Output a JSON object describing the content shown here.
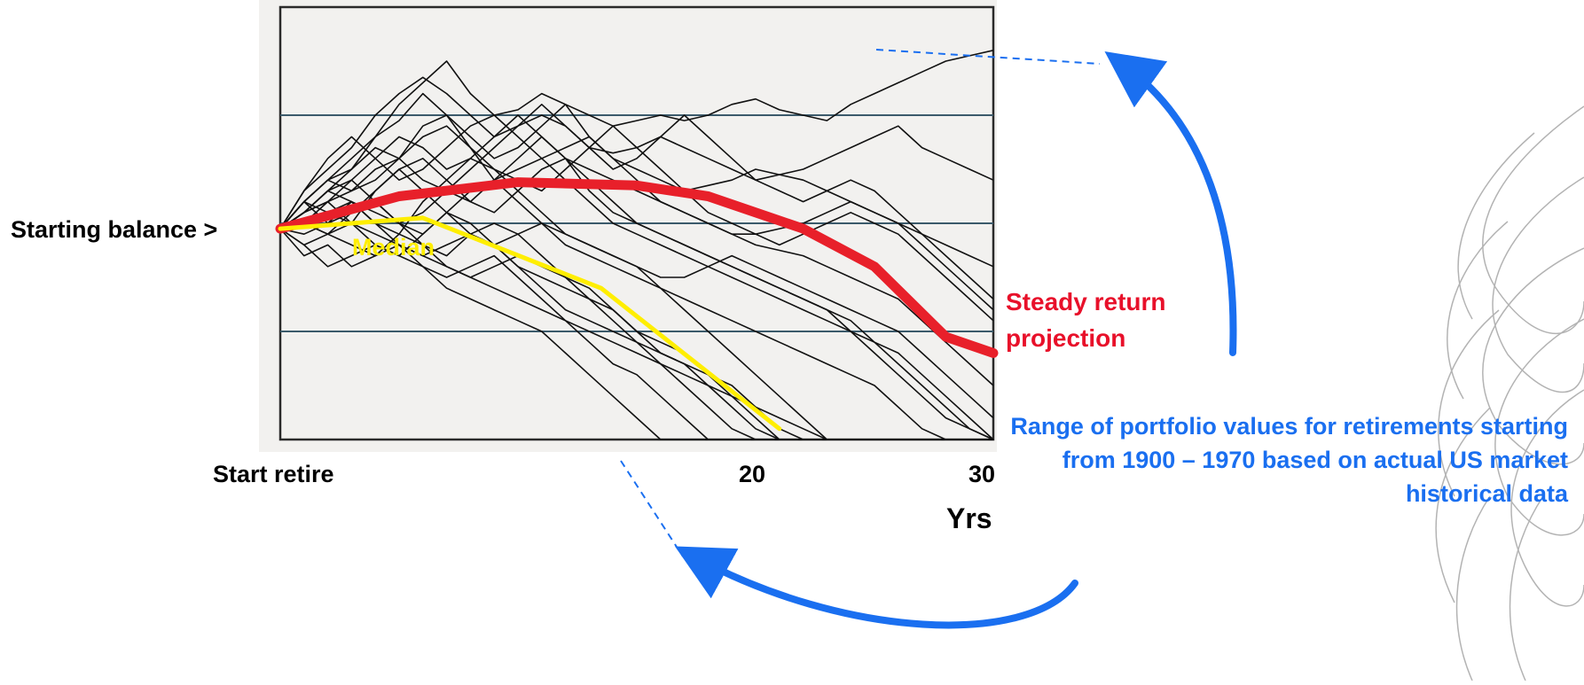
{
  "labels": {
    "starting_balance": "Starting balance >",
    "median": "Median",
    "steady_return": "Steady return projection",
    "range_note": "Range of portfolio values for retirements starting from 1900 – 1970 based on actual US market historical data"
  },
  "colors": {
    "median": "#ffee00",
    "steady_return": "#e8202a",
    "annotation": "#1a6ff0",
    "paths": "#111111"
  },
  "chart_data": {
    "type": "line",
    "title": "",
    "xlabel": "Yrs",
    "ylabel": "",
    "x_ticks": [
      {
        "x": 0,
        "label": "Start retire"
      },
      {
        "x": 20,
        "label": "20"
      },
      {
        "x": 30,
        "label": "30"
      }
    ],
    "xlim": [
      0,
      30
    ],
    "ylim": [
      0,
      4
    ],
    "y_gridlines": [
      1,
      2,
      3
    ],
    "starting_balance": 1.95,
    "series": [
      {
        "name": "Median",
        "x": [
          0,
          6,
          13.5,
          21
        ],
        "y": [
          1.95,
          2.05,
          1.4,
          0.1
        ]
      },
      {
        "name": "Steady return projection",
        "x": [
          0,
          5,
          10,
          15,
          18,
          22,
          25,
          28,
          30
        ],
        "y": [
          1.95,
          2.25,
          2.38,
          2.35,
          2.25,
          1.95,
          1.6,
          0.95,
          0.8
        ]
      }
    ],
    "historical_paths": [
      [
        1.95,
        2.2,
        2.4,
        2.6,
        2.8,
        3.1,
        3.3,
        3.5,
        3.2,
        3.0,
        3.05,
        3.2,
        3.1,
        3.0,
        2.9,
        2.95,
        3.0,
        2.95,
        3.0,
        3.1,
        3.15,
        3.05,
        3.0,
        2.95,
        3.1,
        3.2,
        3.3,
        3.4,
        3.5,
        3.55,
        3.6
      ],
      [
        1.95,
        2.3,
        2.5,
        2.7,
        3.0,
        3.2,
        3.35,
        3.2,
        3.0,
        2.8,
        2.9,
        3.0,
        2.9,
        2.7,
        2.65,
        2.7,
        2.8,
        2.7,
        2.6,
        2.5,
        2.4,
        2.45,
        2.5,
        2.6,
        2.7,
        2.8,
        2.9,
        2.7,
        2.6,
        2.5,
        2.4
      ],
      [
        1.95,
        2.1,
        2.3,
        2.5,
        2.8,
        2.95,
        3.2,
        3.0,
        2.8,
        2.6,
        2.7,
        2.9,
        3.1,
        2.8,
        2.6,
        2.5,
        2.4,
        2.3,
        2.35,
        2.4,
        2.5,
        2.45,
        2.4,
        2.3,
        2.2,
        2.1,
        2.0,
        1.9,
        1.8,
        1.7,
        1.6
      ],
      [
        1.95,
        2.2,
        2.4,
        2.3,
        2.5,
        2.6,
        2.9,
        3.0,
        2.7,
        2.4,
        2.5,
        2.6,
        2.7,
        2.8,
        2.6,
        2.4,
        2.2,
        2.1,
        2.0,
        1.9,
        1.9,
        1.95,
        2.0,
        2.1,
        2.2,
        2.1,
        2.0,
        1.8,
        1.6,
        1.4,
        1.2
      ],
      [
        1.95,
        2.0,
        2.2,
        2.4,
        2.6,
        2.8,
        2.7,
        2.5,
        2.6,
        2.8,
        3.0,
        2.8,
        2.6,
        2.5,
        2.4,
        2.3,
        2.2,
        2.1,
        2.0,
        1.9,
        1.8,
        1.75,
        1.7,
        1.6,
        1.5,
        1.4,
        1.3,
        1.1,
        0.9,
        0.7,
        0.5
      ],
      [
        1.95,
        2.1,
        2.2,
        2.0,
        2.3,
        2.5,
        2.6,
        2.4,
        2.2,
        2.1,
        2.3,
        2.5,
        2.6,
        2.4,
        2.2,
        2.0,
        1.9,
        1.8,
        1.7,
        1.6,
        1.5,
        1.4,
        1.3,
        1.2,
        1.1,
        0.9,
        0.7,
        0.5,
        0.3,
        0.1,
        0.0
      ],
      [
        1.95,
        2.2,
        2.0,
        2.1,
        2.2,
        2.0,
        1.9,
        2.1,
        2.3,
        2.4,
        2.2,
        2.0,
        1.8,
        1.7,
        1.6,
        1.5,
        1.4,
        1.3,
        1.2,
        1.1,
        1.0,
        0.9,
        0.8,
        0.7,
        0.6,
        0.5,
        0.3,
        0.1,
        0.0,
        0.0,
        0.0
      ],
      [
        1.95,
        1.8,
        1.9,
        2.0,
        1.8,
        1.7,
        1.9,
        2.1,
        2.0,
        1.8,
        1.6,
        1.5,
        1.4,
        1.3,
        1.1,
        0.9,
        0.7,
        0.5,
        0.3,
        0.1,
        0.0,
        0.0,
        0.0,
        0.0,
        0.0,
        0.0,
        0.0,
        0.0,
        0.0,
        0.0,
        0.0
      ],
      [
        1.95,
        2.1,
        2.3,
        2.2,
        2.0,
        1.9,
        1.8,
        1.7,
        1.9,
        2.0,
        1.9,
        1.7,
        1.5,
        1.3,
        1.2,
        1.0,
        0.9,
        0.8,
        0.6,
        0.4,
        0.2,
        0.0,
        0.0,
        0.0,
        0.0,
        0.0,
        0.0,
        0.0,
        0.0,
        0.0,
        0.0
      ],
      [
        1.95,
        1.7,
        1.8,
        1.6,
        1.7,
        1.8,
        1.6,
        1.4,
        1.3,
        1.2,
        1.1,
        1.0,
        0.8,
        0.6,
        0.4,
        0.2,
        0.0,
        0.0,
        0.0,
        0.0,
        0.0,
        0.0,
        0.0,
        0.0,
        0.0,
        0.0,
        0.0,
        0.0,
        0.0,
        0.0,
        0.0
      ],
      [
        1.95,
        2.0,
        1.9,
        1.8,
        1.7,
        1.9,
        2.2,
        2.4,
        2.6,
        2.5,
        2.3,
        2.1,
        1.9,
        1.8,
        1.7,
        1.6,
        1.4,
        1.2,
        1.0,
        0.8,
        0.6,
        0.4,
        0.2,
        0.0,
        0.0,
        0.0,
        0.0,
        0.0,
        0.0,
        0.0,
        0.0
      ],
      [
        1.95,
        2.2,
        2.4,
        2.5,
        2.7,
        2.6,
        2.4,
        2.3,
        2.2,
        2.4,
        2.6,
        2.8,
        2.6,
        2.3,
        2.1,
        2.0,
        1.9,
        1.8,
        1.7,
        1.6,
        1.5,
        1.4,
        1.3,
        1.2,
        1.0,
        0.8,
        0.6,
        0.4,
        0.2,
        0.1,
        0.0
      ],
      [
        1.95,
        1.9,
        2.0,
        2.2,
        2.0,
        1.8,
        1.7,
        1.6,
        1.5,
        1.6,
        1.7,
        1.6,
        1.5,
        1.4,
        1.2,
        1.0,
        0.8,
        0.7,
        0.5,
        0.3,
        0.1,
        0.0,
        0.0,
        0.0,
        0.0,
        0.0,
        0.0,
        0.0,
        0.0,
        0.0,
        0.0
      ],
      [
        1.95,
        2.1,
        2.2,
        2.3,
        2.4,
        2.6,
        2.8,
        2.9,
        2.7,
        2.5,
        2.4,
        2.3,
        2.5,
        2.7,
        2.9,
        2.7,
        2.5,
        2.3,
        2.1,
        2.0,
        1.9,
        1.8,
        1.9,
        2.0,
        2.1,
        2.0,
        1.9,
        1.7,
        1.5,
        1.3,
        1.1
      ],
      [
        1.95,
        2.0,
        2.1,
        2.2,
        2.1,
        2.0,
        1.8,
        1.6,
        1.5,
        1.4,
        1.3,
        1.2,
        1.1,
        1.0,
        0.9,
        0.8,
        0.7,
        0.6,
        0.5,
        0.4,
        0.3,
        0.2,
        0.1,
        0.0,
        0.0,
        0.0,
        0.0,
        0.0,
        0.0,
        0.0,
        0.0
      ],
      [
        1.95,
        1.8,
        1.6,
        1.7,
        1.8,
        1.7,
        1.6,
        1.5,
        1.6,
        1.7,
        1.5,
        1.3,
        1.1,
        0.9,
        0.7,
        0.6,
        0.4,
        0.2,
        0.0,
        0.0,
        0.0,
        0.0,
        0.0,
        0.0,
        0.0,
        0.0,
        0.0,
        0.0,
        0.0,
        0.0,
        0.0
      ],
      [
        1.95,
        2.1,
        2.3,
        2.4,
        2.2,
        2.0,
        2.1,
        2.3,
        2.5,
        2.7,
        2.9,
        3.1,
        2.9,
        2.7,
        2.5,
        2.6,
        2.8,
        3.0,
        2.8,
        2.6,
        2.4,
        2.3,
        2.2,
        2.3,
        2.4,
        2.3,
        2.1,
        1.9,
        1.7,
        1.5,
        1.3
      ],
      [
        1.95,
        2.0,
        1.9,
        2.1,
        2.3,
        2.5,
        2.3,
        2.1,
        1.9,
        1.8,
        1.9,
        2.0,
        1.9,
        1.8,
        1.7,
        1.6,
        1.5,
        1.5,
        1.6,
        1.7,
        1.6,
        1.5,
        1.4,
        1.3,
        1.2,
        1.1,
        1.0,
        0.8,
        0.6,
        0.4,
        0.2
      ],
      [
        1.95,
        2.2,
        2.1,
        2.0,
        1.9,
        1.8,
        1.7,
        1.8,
        1.9,
        1.8,
        1.6,
        1.4,
        1.2,
        1.1,
        1.0,
        0.9,
        0.8,
        0.7,
        0.6,
        0.5,
        0.3,
        0.1,
        0.0,
        0.0,
        0.0,
        0.0,
        0.0,
        0.0,
        0.0,
        0.0,
        0.0
      ],
      [
        1.95,
        2.3,
        2.6,
        2.8,
        2.6,
        2.4,
        2.5,
        2.7,
        2.9,
        3.0,
        2.8,
        2.6,
        2.4,
        2.2,
        2.0,
        1.9,
        1.8,
        1.7,
        1.6,
        1.5,
        1.4,
        1.3,
        1.2,
        1.1,
        1.0,
        0.9,
        0.8,
        0.6,
        0.4,
        0.2,
        0.0
      ]
    ]
  }
}
